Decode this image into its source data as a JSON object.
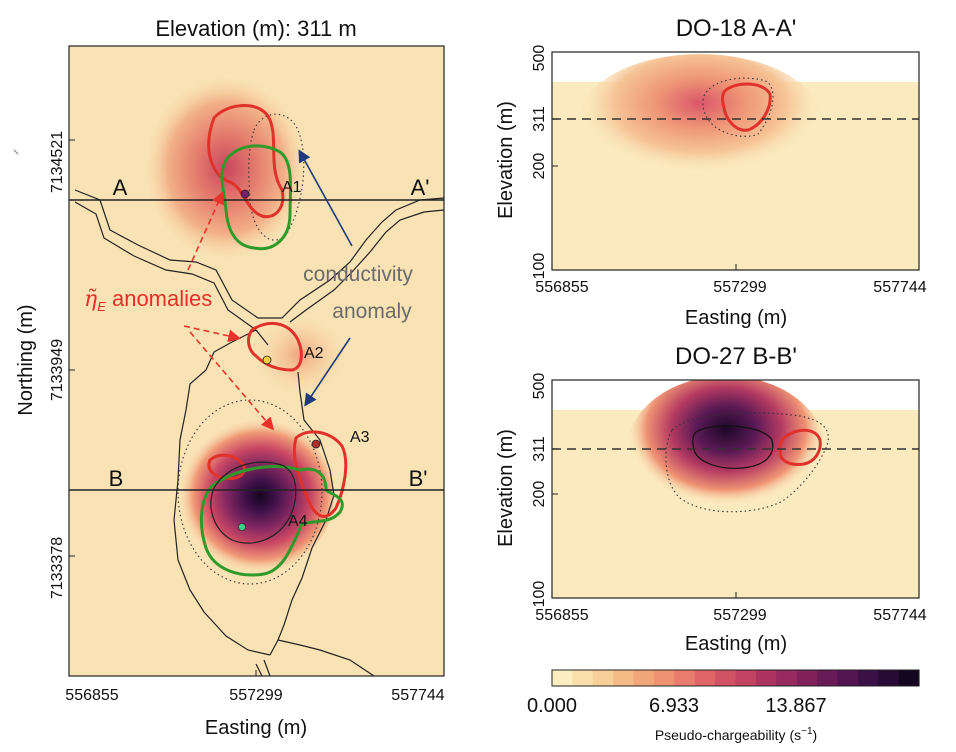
{
  "chart_data": [
    {
      "type": "heatmap",
      "title": "Elevation (m): 311 m",
      "xlabel": "Easting (m)",
      "ylabel": "Northing (m)",
      "x_ticks": [
        "556855",
        "557299",
        "557744"
      ],
      "y_ticks": [
        "7134521",
        "7133949",
        "7133378"
      ],
      "section_lines": [
        {
          "start": "A",
          "end": "A'",
          "northing": 7134521
        },
        {
          "start": "B",
          "end": "B'",
          "northing": 7133548
        }
      ],
      "anomaly_labels": [
        "A1",
        "A2",
        "A3",
        "A4"
      ],
      "annotations": {
        "eta_anomalies_symbol": "η̃",
        "eta_anomalies_subscript": "E",
        "eta_anomalies_text": " anomalies",
        "conductivity_line1": "conductivity",
        "conductivity_line2": "anomaly"
      },
      "colors": {
        "eta_contour": "#e0312a",
        "conductivity_contour": "#2f9a2a",
        "arrow_conductivity": "#1e3a78",
        "arrow_eta": "#e8332b"
      }
    },
    {
      "type": "heatmap",
      "title": "DO-18 A-A'",
      "xlabel": "Easting (m)",
      "ylabel": "Elevation (m)",
      "x_ticks": [
        "556855",
        "557299",
        "557744"
      ],
      "y_ticks": [
        "100",
        "200",
        "311",
        "500"
      ],
      "dashed_level": 311
    },
    {
      "type": "heatmap",
      "title": "DO-27 B-B'",
      "xlabel": "Easting (m)",
      "ylabel": "Elevation (m)",
      "x_ticks": [
        "556855",
        "557299",
        "557744"
      ],
      "y_ticks": [
        "100",
        "200",
        "311",
        "500"
      ],
      "dashed_level": 311
    }
  ],
  "colorbar": {
    "label": "Pseudo-chargeability (s",
    "label_sup": "−1",
    "label_end": ")",
    "ticks": [
      "0.000",
      "6.933",
      "13.867"
    ],
    "range": [
      0,
      20.8
    ],
    "colors": [
      "#fbefc1",
      "#f9dfaa",
      "#f7cf98",
      "#f5bb87",
      "#f2a77a",
      "#ee9272",
      "#e97c6c",
      "#e06568",
      "#d25265",
      "#c24262",
      "#ad345f",
      "#972a5e",
      "#80215c",
      "#691b58",
      "#521551",
      "#3b1046",
      "#270b34",
      "#140620"
    ]
  }
}
